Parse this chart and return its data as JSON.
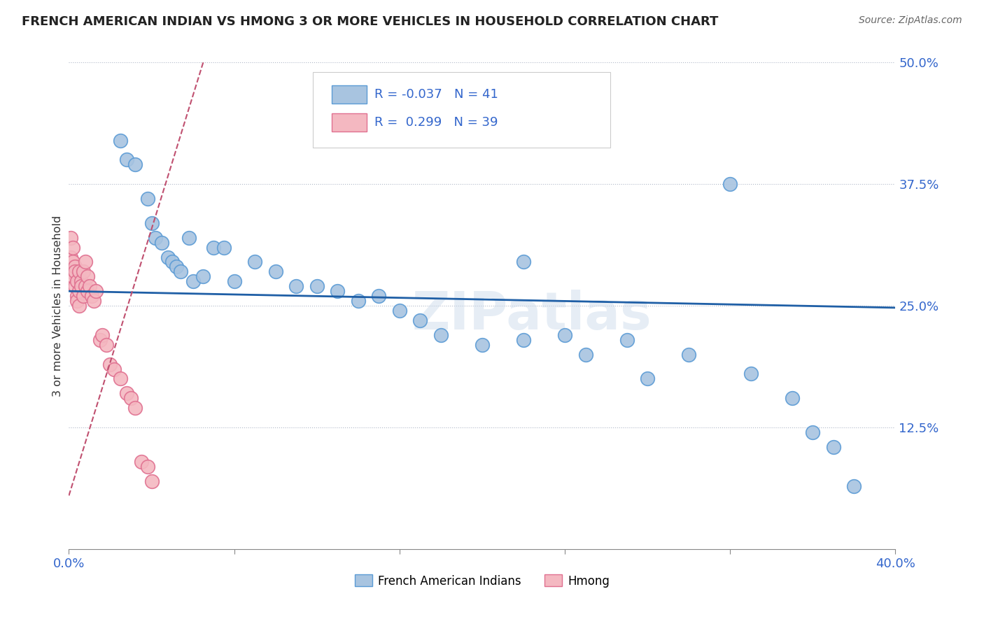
{
  "title": "FRENCH AMERICAN INDIAN VS HMONG 3 OR MORE VEHICLES IN HOUSEHOLD CORRELATION CHART",
  "source": "Source: ZipAtlas.com",
  "xlabel_label": "French American Indians",
  "ylabel_label": "3 or more Vehicles in Household",
  "xlim": [
    0.0,
    0.4
  ],
  "ylim": [
    0.0,
    0.5
  ],
  "xticks": [
    0.0,
    0.08,
    0.16,
    0.24,
    0.32,
    0.4
  ],
  "xtick_labels": [
    "0.0%",
    "",
    "",
    "",
    "",
    "40.0%"
  ],
  "yticks": [
    0.0,
    0.125,
    0.25,
    0.375,
    0.5
  ],
  "ytick_labels": [
    "",
    "12.5%",
    "25.0%",
    "37.5%",
    "50.0%"
  ],
  "blue_R": "-0.037",
  "blue_N": "41",
  "pink_R": "0.299",
  "pink_N": "39",
  "blue_color": "#a8c4e0",
  "pink_color": "#f4b8c1",
  "blue_edge_color": "#5b9bd5",
  "pink_edge_color": "#e07090",
  "trend_blue_color": "#1f5fa6",
  "trend_pink_color": "#c05070",
  "watermark": "ZIPatlas",
  "blue_trend_x0": 0.0,
  "blue_trend_y0": 0.265,
  "blue_trend_x1": 0.4,
  "blue_trend_y1": 0.248,
  "pink_trend_x0": 0.0,
  "pink_trend_y0": 0.055,
  "pink_trend_x1": 0.065,
  "pink_trend_y1": 0.5,
  "blue_scatter_x": [
    0.025,
    0.028,
    0.032,
    0.038,
    0.04,
    0.042,
    0.045,
    0.048,
    0.05,
    0.052,
    0.054,
    0.058,
    0.06,
    0.065,
    0.07,
    0.075,
    0.08,
    0.09,
    0.1,
    0.11,
    0.12,
    0.13,
    0.14,
    0.15,
    0.16,
    0.17,
    0.18,
    0.2,
    0.22,
    0.24,
    0.25,
    0.27,
    0.28,
    0.3,
    0.32,
    0.33,
    0.35,
    0.36,
    0.37,
    0.38,
    0.22
  ],
  "blue_scatter_y": [
    0.42,
    0.4,
    0.395,
    0.36,
    0.335,
    0.32,
    0.315,
    0.3,
    0.295,
    0.29,
    0.285,
    0.32,
    0.275,
    0.28,
    0.31,
    0.31,
    0.275,
    0.295,
    0.285,
    0.27,
    0.27,
    0.265,
    0.255,
    0.26,
    0.245,
    0.235,
    0.22,
    0.21,
    0.215,
    0.22,
    0.2,
    0.215,
    0.175,
    0.2,
    0.375,
    0.18,
    0.155,
    0.12,
    0.105,
    0.065,
    0.295
  ],
  "pink_scatter_x": [
    0.001,
    0.001,
    0.001,
    0.002,
    0.002,
    0.002,
    0.003,
    0.003,
    0.003,
    0.004,
    0.004,
    0.004,
    0.005,
    0.005,
    0.005,
    0.006,
    0.006,
    0.007,
    0.007,
    0.008,
    0.008,
    0.009,
    0.009,
    0.01,
    0.011,
    0.012,
    0.013,
    0.015,
    0.016,
    0.018,
    0.02,
    0.022,
    0.025,
    0.028,
    0.03,
    0.032,
    0.035,
    0.038,
    0.04
  ],
  "pink_scatter_y": [
    0.32,
    0.285,
    0.3,
    0.295,
    0.28,
    0.31,
    0.29,
    0.27,
    0.285,
    0.26,
    0.275,
    0.255,
    0.285,
    0.265,
    0.25,
    0.275,
    0.27,
    0.26,
    0.285,
    0.295,
    0.27,
    0.265,
    0.28,
    0.27,
    0.26,
    0.255,
    0.265,
    0.215,
    0.22,
    0.21,
    0.19,
    0.185,
    0.175,
    0.16,
    0.155,
    0.145,
    0.09,
    0.085,
    0.07
  ]
}
